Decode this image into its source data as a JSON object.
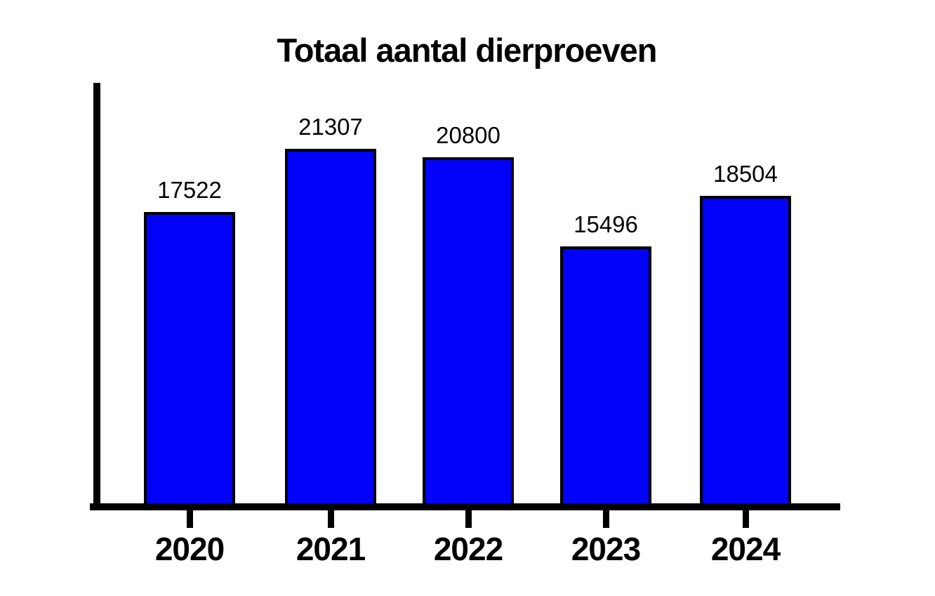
{
  "page": {
    "background_color": "#FFFFFF"
  },
  "chart_data": {
    "type": "bar",
    "title": "Totaal aantal dierproeven",
    "categories": [
      "2020",
      "2021",
      "2022",
      "2023",
      "2024"
    ],
    "values": [
      17522,
      21307,
      20800,
      15496,
      18504
    ],
    "value_labels": [
      "17522",
      "21307",
      "20800",
      "15496",
      "18504"
    ],
    "xlabel": "",
    "ylabel": "",
    "ylim": [
      0,
      25000
    ],
    "grid": false,
    "legend_position": "none",
    "axis_ticks": "below-x-axis-at-bar-centers",
    "colors": {
      "bar_fill": "#0202F8",
      "bar_border": "#000000",
      "axis": "#000000",
      "text": "#000000"
    }
  }
}
